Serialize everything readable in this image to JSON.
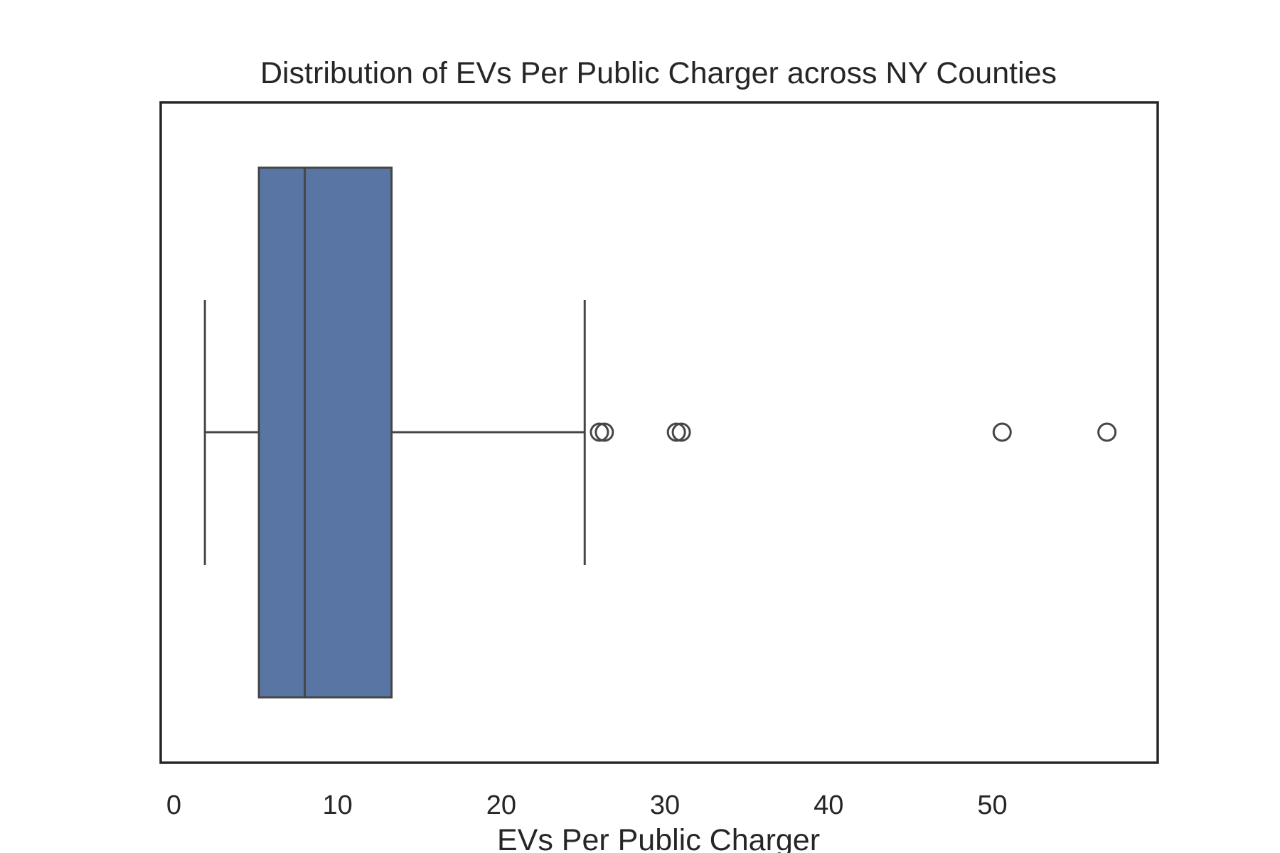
{
  "chart_data": {
    "type": "box",
    "orientation": "horizontal",
    "title": "Distribution of EVs Per Public Charger across NY Counties",
    "xlabel": "EVs Per Public Charger",
    "ylabel": "",
    "xlim": [
      -0.8,
      60.1
    ],
    "xticks": [
      0,
      10,
      20,
      30,
      40,
      50
    ],
    "xtick_labels": [
      "0",
      "10",
      "20",
      "30",
      "40",
      "50"
    ],
    "grid": false,
    "legend": "none",
    "box": {
      "whisker_low": 1.9,
      "q1": 5.2,
      "median": 8.0,
      "q3": 13.3,
      "whisker_high": 25.1,
      "outliers": [
        26.0,
        26.3,
        30.7,
        31.0,
        50.6,
        57.0
      ]
    },
    "colors": {
      "box_fill": "#5875a4",
      "line": "#464646",
      "frame": "#262626",
      "text": "#262626",
      "background": "#ffffff"
    }
  }
}
